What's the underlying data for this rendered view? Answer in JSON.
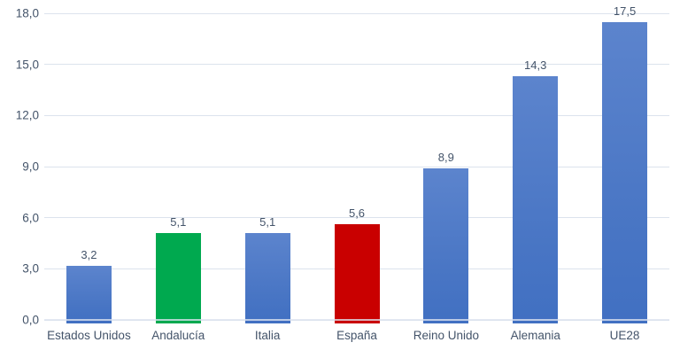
{
  "chart_data": {
    "type": "bar",
    "title": "",
    "categories": [
      "Estados Unidos",
      "Andalucía",
      "Italia",
      "España",
      "Reino Unido",
      "Alemania",
      "UE28"
    ],
    "values": [
      3.2,
      5.1,
      5.1,
      5.6,
      8.9,
      14.3,
      17.5
    ],
    "value_labels": [
      "3,2",
      "5,1",
      "5,1",
      "5,6",
      "8,9",
      "14,3",
      "17,5"
    ],
    "bar_colors": [
      "blue",
      "green",
      "blue",
      "red",
      "blue",
      "blue",
      "blue"
    ],
    "xlabel": "",
    "ylabel": "",
    "ylim": [
      0,
      18
    ],
    "y_tick_step": 3,
    "y_tick_labels": [
      "0,0",
      "3,0",
      "6,0",
      "9,0",
      "12,0",
      "15,0",
      "18,0"
    ],
    "grid": true,
    "legend": false,
    "decimal_separator": ","
  },
  "colors": {
    "bar_blue": "#4472C4",
    "bar_blue_light": "#5C84CD",
    "bar_green": "#00A94F",
    "bar_red": "#C90000",
    "gridline": "#DCE3ED",
    "text": "#44546A",
    "background": "#FFFFFF"
  }
}
